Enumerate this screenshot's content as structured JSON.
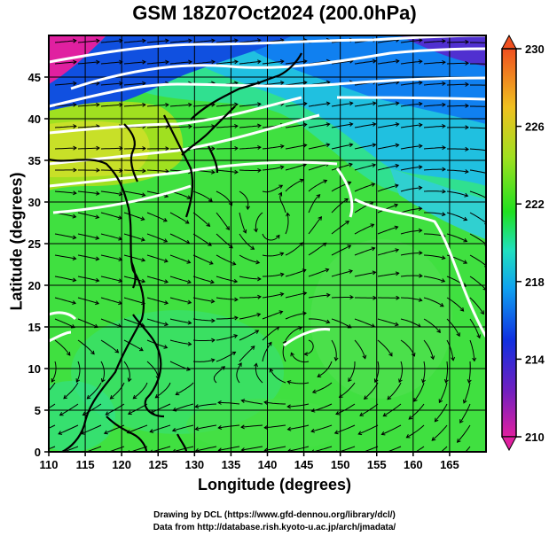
{
  "title": "GSM 18Z07Oct2024 (200.0hPa)",
  "x_axis": {
    "label": "Longitude (degrees)",
    "range": [
      110,
      170
    ],
    "ticks": [
      "110",
      "115",
      "120",
      "125",
      "130",
      "135",
      "140",
      "145",
      "150",
      "155",
      "160",
      "165"
    ]
  },
  "y_axis": {
    "label": "Latitude (degrees)",
    "range": [
      0,
      50
    ],
    "ticks": [
      "0",
      "5",
      "10",
      "15",
      "20",
      "25",
      "30",
      "35",
      "40",
      "45"
    ]
  },
  "colorbar": {
    "ticks": [
      "210",
      "214",
      "218",
      "222",
      "226",
      "230"
    ],
    "range": [
      210,
      230
    ],
    "colors": [
      "#e020a0",
      "#7020c0",
      "#1030e0",
      "#10a0f0",
      "#20e0c0",
      "#20e020",
      "#a0e020",
      "#f0c020",
      "#f05020"
    ]
  },
  "field_colors": {
    "polar": "#c020a0",
    "cold": "#2040e0",
    "cool": "#20c0e0",
    "mid": "#30e080",
    "warm": "#40e040",
    "jet": "#c0e030"
  },
  "credits": {
    "line1": "Drawing by DCL (https://www.gfd-dennou.org/library/dcl/)",
    "line2": "Data from http://database.rish.kyoto-u.ac.jp/arch/jmadata/"
  }
}
